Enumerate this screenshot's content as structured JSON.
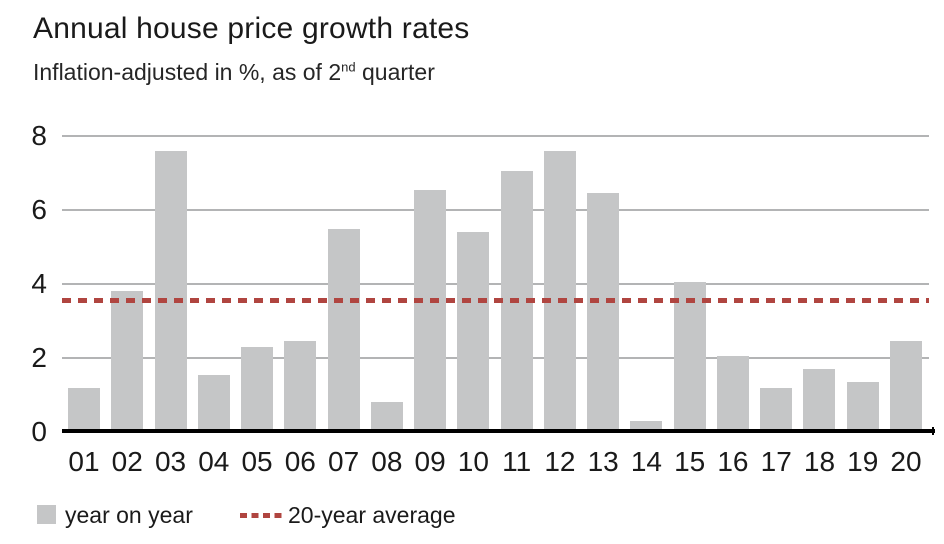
{
  "title": "Annual house price growth rates",
  "subtitle": {
    "prefix": "Inflation-adjusted in %, as of 2",
    "sup": "nd",
    "suffix": " quarter"
  },
  "legend": {
    "bars_label": "year on year",
    "average_label": "20-year average"
  },
  "colors": {
    "bar": "#c5c6c7",
    "average_line": "#b04540",
    "gridline": "#b3b4b5",
    "axis": "#000000",
    "text": "#1a1a1a"
  },
  "chart_data": {
    "type": "bar",
    "title": "Annual house price growth rates",
    "subtitle": "Inflation-adjusted in %, as of 2nd quarter",
    "categories": [
      "01",
      "02",
      "03",
      "04",
      "05",
      "06",
      "07",
      "08",
      "09",
      "10",
      "11",
      "12",
      "13",
      "14",
      "15",
      "16",
      "17",
      "18",
      "19",
      "20"
    ],
    "series": [
      {
        "name": "year on year",
        "values": [
          1.2,
          3.8,
          7.6,
          1.55,
          2.3,
          2.45,
          5.5,
          0.8,
          6.55,
          5.4,
          7.05,
          7.6,
          6.45,
          0.3,
          4.05,
          2.05,
          1.2,
          1.7,
          1.35,
          2.45
        ]
      }
    ],
    "average_line": {
      "label": "20-year average",
      "value": 3.55
    },
    "xlabel": "",
    "ylabel": "",
    "ylim": [
      0,
      8
    ],
    "yticks": [
      0,
      2,
      4,
      6,
      8
    ],
    "grid": true,
    "legend_position": "bottom"
  }
}
